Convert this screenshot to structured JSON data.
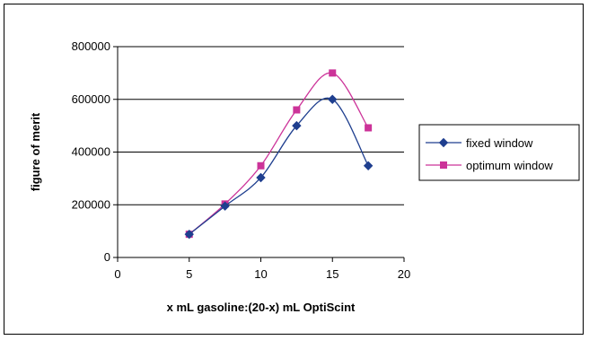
{
  "chart_data": {
    "type": "line",
    "title": "",
    "xlabel": "x mL gasoline:(20-x) mL OptiScint",
    "ylabel": "figure of merit",
    "xlim": [
      0,
      20
    ],
    "ylim": [
      0,
      800000
    ],
    "x_ticks": [
      "0",
      "5",
      "10",
      "15",
      "20"
    ],
    "y_ticks": [
      "0",
      "200000",
      "400000",
      "600000",
      "800000"
    ],
    "grid": "horizontal",
    "legend_position": "right",
    "series": [
      {
        "name": "fixed window",
        "color": "#1F3F8F",
        "marker": "diamond",
        "x": [
          5,
          7.5,
          10,
          12.5,
          15,
          17.5
        ],
        "values": [
          88000,
          195000,
          303000,
          500000,
          600000,
          348000
        ]
      },
      {
        "name": "optimum window",
        "color": "#CC3399",
        "marker": "square",
        "x": [
          5,
          7.5,
          10,
          12.5,
          15,
          17.5
        ],
        "values": [
          88000,
          203000,
          348000,
          560000,
          700000,
          492000
        ]
      }
    ]
  }
}
